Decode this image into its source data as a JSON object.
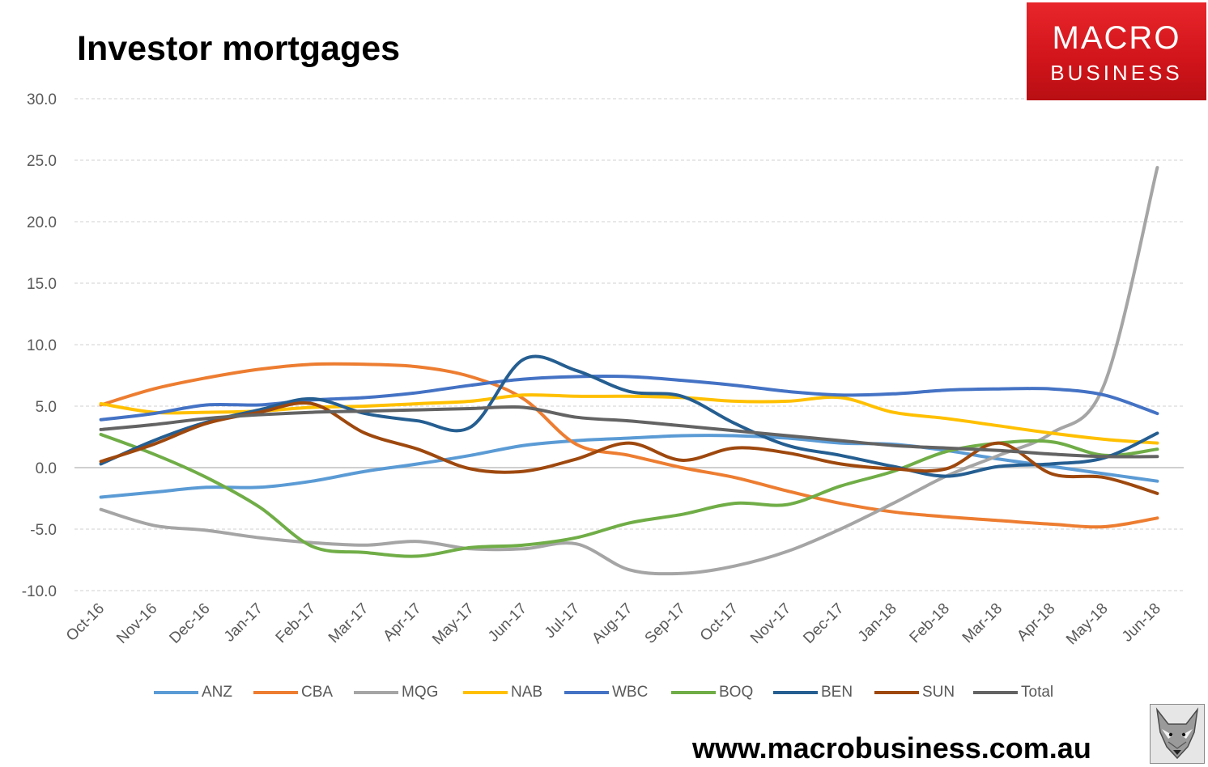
{
  "logo": {
    "line1": "MACRO",
    "line2": "BUSINESS",
    "color": "#D9141A"
  },
  "footer": {
    "url": "www.macrobusiness.com.au"
  },
  "chart_data": {
    "type": "line",
    "title": "Investor mortgages",
    "xlabel": "",
    "ylabel": "",
    "ylim": [
      -10,
      30
    ],
    "ytick_step": 5,
    "ytick_decimals": 1,
    "grid": true,
    "legend": "bottom",
    "categories": [
      "Oct-16",
      "Nov-16",
      "Dec-16",
      "Jan-17",
      "Feb-17",
      "Mar-17",
      "Apr-17",
      "May-17",
      "Jun-17",
      "Jul-17",
      "Aug-17",
      "Sep-17",
      "Oct-17",
      "Nov-17",
      "Dec-17",
      "Jan-18",
      "Feb-18",
      "Mar-18",
      "Apr-18",
      "May-18",
      "Jun-18"
    ],
    "series": [
      {
        "name": "ANZ",
        "color": "#5B9BD5",
        "values": [
          -2.4,
          -2.0,
          -1.6,
          -1.6,
          -1.1,
          -0.3,
          0.3,
          1.0,
          1.8,
          2.2,
          2.4,
          2.6,
          2.6,
          2.4,
          2.0,
          1.9,
          1.4,
          0.7,
          0.1,
          -0.5,
          -1.1
        ]
      },
      {
        "name": "CBA",
        "color": "#ED7D31",
        "values": [
          5.1,
          6.4,
          7.3,
          8.0,
          8.4,
          8.4,
          8.2,
          7.4,
          5.6,
          1.9,
          1.0,
          0.0,
          -0.8,
          -1.9,
          -2.9,
          -3.6,
          -4.0,
          -4.3,
          -4.6,
          -4.8,
          -4.1
        ]
      },
      {
        "name": "MQG",
        "color": "#A5A5A5",
        "values": [
          -3.4,
          -4.7,
          -5.1,
          -5.7,
          -6.1,
          -6.3,
          -6.0,
          -6.6,
          -6.6,
          -6.2,
          -8.3,
          -8.6,
          -8.0,
          -6.8,
          -5.0,
          -2.9,
          -0.7,
          1.0,
          2.8,
          6.8,
          24.4
        ]
      },
      {
        "name": "NAB",
        "color": "#FFC000",
        "values": [
          5.2,
          4.5,
          4.5,
          4.6,
          4.9,
          5.0,
          5.2,
          5.4,
          5.9,
          5.8,
          5.8,
          5.7,
          5.4,
          5.4,
          5.7,
          4.5,
          4.0,
          3.4,
          2.8,
          2.3,
          2.0
        ]
      },
      {
        "name": "WBC",
        "color": "#4472C4",
        "values": [
          3.9,
          4.4,
          5.1,
          5.1,
          5.5,
          5.7,
          6.1,
          6.7,
          7.2,
          7.4,
          7.4,
          7.1,
          6.7,
          6.2,
          5.9,
          6.0,
          6.3,
          6.4,
          6.4,
          5.9,
          4.4
        ]
      },
      {
        "name": "BOQ",
        "color": "#70AD47",
        "values": [
          2.7,
          1.1,
          -0.8,
          -3.2,
          -6.4,
          -6.9,
          -7.2,
          -6.5,
          -6.3,
          -5.7,
          -4.5,
          -3.8,
          -2.9,
          -3.0,
          -1.5,
          -0.3,
          1.3,
          2.0,
          2.1,
          1.0,
          1.5
        ]
      },
      {
        "name": "BEN",
        "color": "#255E91",
        "values": [
          0.3,
          2.2,
          3.7,
          4.7,
          5.6,
          4.4,
          3.8,
          3.3,
          8.8,
          7.9,
          6.2,
          5.8,
          3.6,
          1.8,
          1.0,
          0.1,
          -0.7,
          0.1,
          0.3,
          0.8,
          2.8
        ]
      },
      {
        "name": "SUN",
        "color": "#9E480E",
        "values": [
          0.5,
          1.9,
          3.6,
          4.5,
          5.2,
          2.8,
          1.5,
          -0.1,
          -0.3,
          0.7,
          2.0,
          0.6,
          1.6,
          1.2,
          0.3,
          -0.1,
          -0.1,
          2.0,
          -0.5,
          -0.8,
          -2.1
        ]
      },
      {
        "name": "Total",
        "color": "#636363",
        "values": [
          3.1,
          3.5,
          4.0,
          4.3,
          4.5,
          4.6,
          4.7,
          4.8,
          4.9,
          4.1,
          3.8,
          3.4,
          3.0,
          2.6,
          2.2,
          1.8,
          1.6,
          1.4,
          1.1,
          0.9,
          0.9
        ]
      }
    ]
  }
}
